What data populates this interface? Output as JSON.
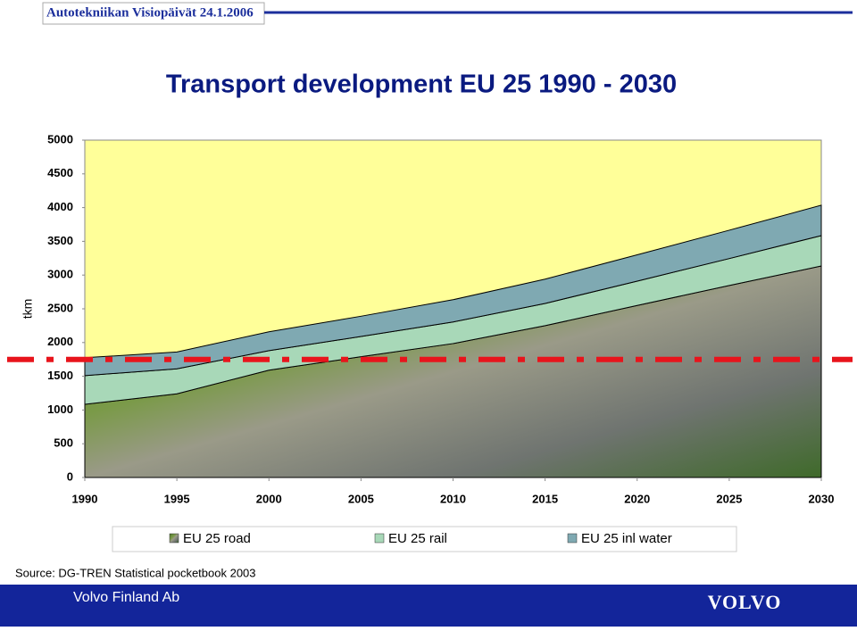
{
  "header": "Autotekniikan Visiopäivät 24.1.2006",
  "chart_data": {
    "type": "stacked-area",
    "title": "Transport development EU 25 1990 - 2030",
    "y_label": "tkm",
    "x": [
      1990,
      1995,
      2000,
      2005,
      2010,
      2015,
      2020,
      2025,
      2030
    ],
    "xlim": [
      1990,
      2030
    ],
    "xticks": [
      1990,
      1995,
      2000,
      2005,
      2010,
      2015,
      2020,
      2025,
      2030
    ],
    "ylim": [
      0,
      5000
    ],
    "yticks": [
      0,
      500,
      1000,
      1500,
      2000,
      2500,
      3000,
      3500,
      4000,
      4500,
      5000
    ],
    "series": [
      {
        "name": "EU 25 road",
        "color": "#6f8a55",
        "values": [
          1085,
          1240,
          1590,
          1790,
          1985,
          2250,
          2550,
          2845,
          3135
        ]
      },
      {
        "name": "EU 25 rail",
        "color": "#a8d8b8",
        "values": [
          425,
          370,
          290,
          300,
          320,
          330,
          360,
          400,
          450
        ]
      },
      {
        "name": "EU 25 inl water",
        "color": "#7fa9b2",
        "values": [
          265,
          250,
          280,
          300,
          330,
          360,
          390,
          420,
          450
        ]
      }
    ],
    "reference_line": 1750
  },
  "source": "Source: DG-TREN Statistical pocketbook 2003",
  "footer": {
    "company": "Volvo Finland Ab",
    "logo": "VOLVO"
  }
}
